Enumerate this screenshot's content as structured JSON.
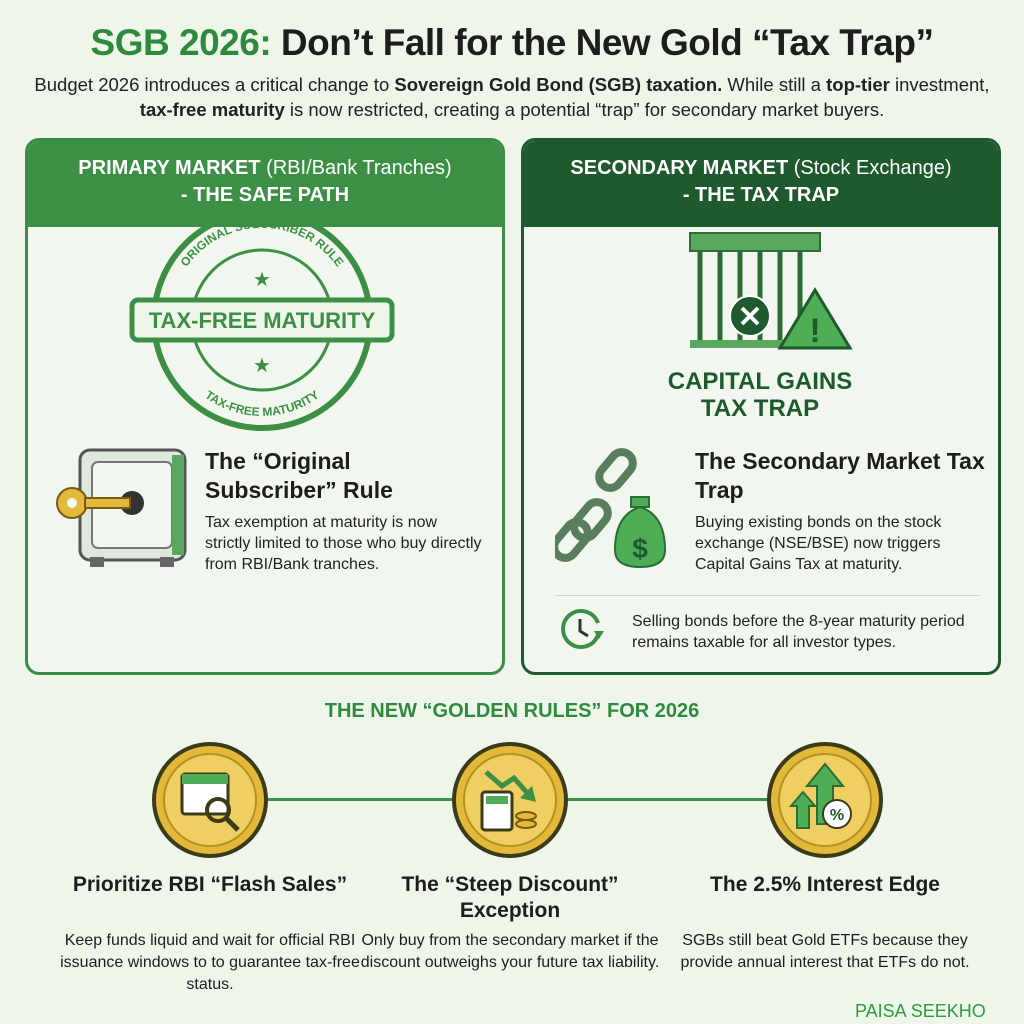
{
  "header": {
    "title_accent": "SGB 2026:",
    "title_rest": " Don’t Fall for the New Gold “Tax Trap”",
    "intro": [
      {
        "t": "Budget 2026 introduces a critical change to ",
        "b": false
      },
      {
        "t": "Sovereign Gold Bond (SGB) taxation.",
        "b": true
      },
      {
        "t": " While still a ",
        "b": false
      },
      {
        "t": "top-tier",
        "b": true
      },
      {
        "t": " investment, ",
        "b": false
      },
      {
        "t": "tax-free maturity",
        "b": true
      },
      {
        "t": " is now restricted, creating a potential “trap” for secondary market buyers.",
        "b": false
      }
    ]
  },
  "primary": {
    "header_bold": "PRIMARY MARKET",
    "header_normal": " (RBI/Bank Tranches)",
    "header_line2": "- THE SAFE PATH",
    "stamp": {
      "top": "ORIGINAL SUBSCRIBER RULE",
      "center": "TAX-FREE MATURITY",
      "bottom": "TAX-FREE MATURITY"
    },
    "title": "The “Original Subscriber” Rule",
    "body": "Tax exemption at maturity is now strictly limited to those who buy directly from RBI/Bank tranches."
  },
  "secondary": {
    "header_bold": "SECONDARY MARKET",
    "header_normal": " (Stock Exchange)",
    "header_line2": "- THE TAX TRAP",
    "badge_line1": "CAPITAL GAINS",
    "badge_line2": "TAX TRAP",
    "title": "The Secondary Market Tax Trap",
    "body": "Buying existing bonds on the stock exchange (NSE/BSE) now triggers Capital Gains Tax at maturity.",
    "note": "Selling bonds before the 8-year maturity period remains taxable for all investor types."
  },
  "rules": {
    "heading": "THE NEW “GOLDEN RULES” FOR 2026",
    "items": [
      {
        "icon": "calendar-magnifier-icon",
        "title": "Prioritize RBI “Flash Sales”",
        "body": "Keep funds liquid and wait for official RBI issuance windows to to guarantee tax-free status."
      },
      {
        "icon": "calculator-down-arrow-icon",
        "title": "The “Steep Discount” Exception",
        "body": "Only buy from the secondary market if the discount outweighs your future tax liability."
      },
      {
        "icon": "percent-up-arrow-icon",
        "title": "The 2.5% Interest Edge",
        "body": "SGBs still beat Gold ETFs because they provide annual interest that ETFs do not."
      }
    ]
  },
  "brand": "PAISA SEEKHO",
  "colors": {
    "green": "#2f8a3e",
    "dark_green": "#1f5a2e",
    "gold": "#e2b93b",
    "background": "#eef5ea"
  }
}
